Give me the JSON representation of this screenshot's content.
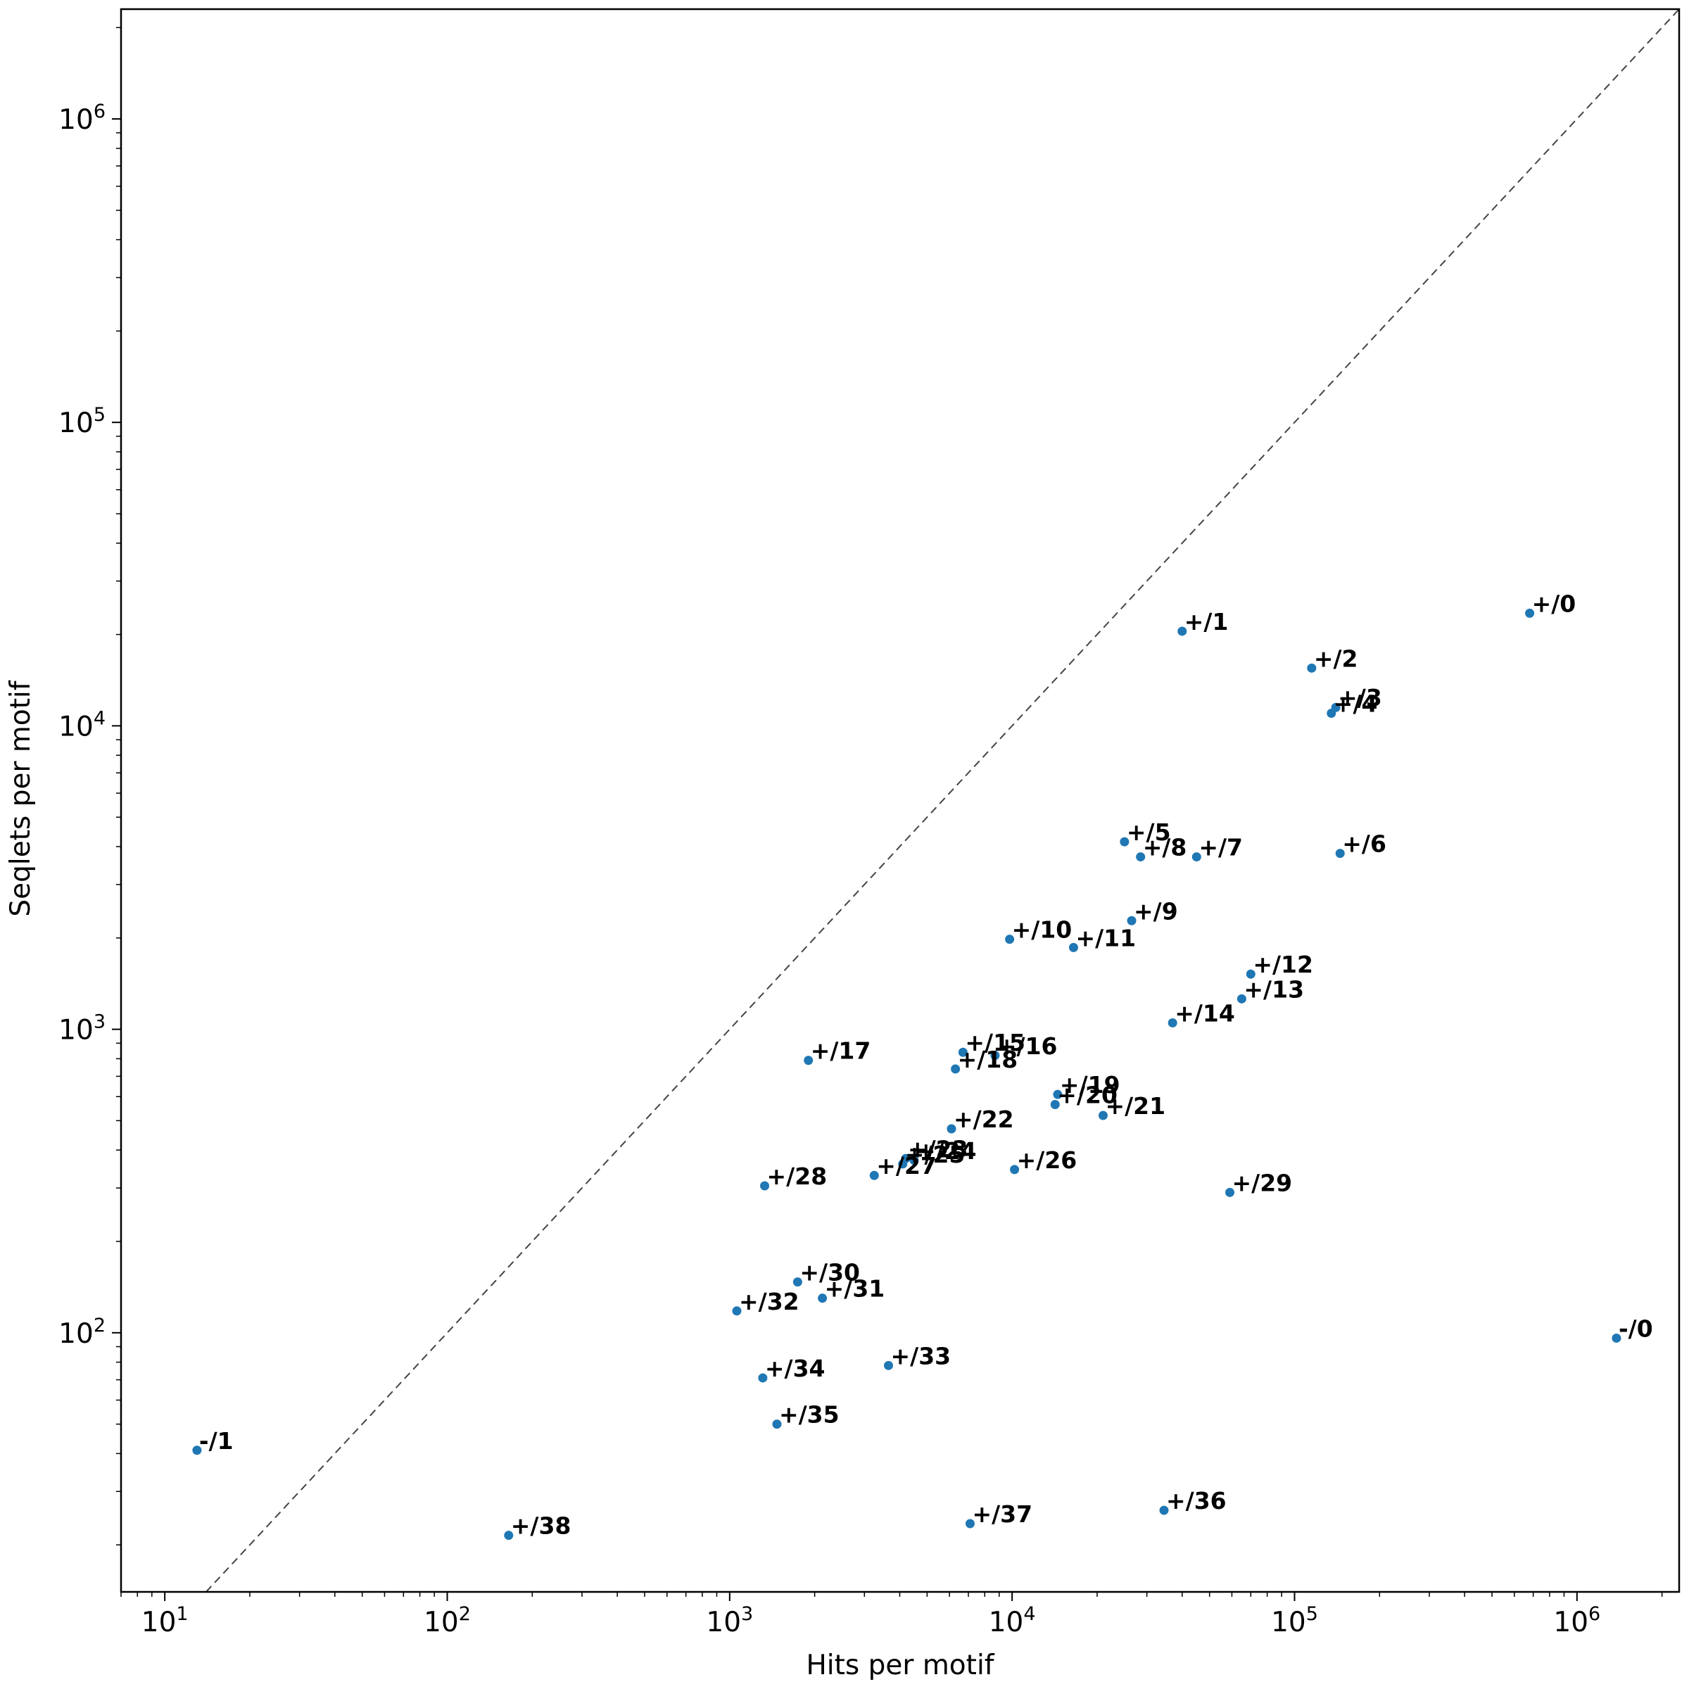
{
  "chart_data": {
    "type": "scatter",
    "xlabel": "Hits per motif",
    "ylabel": "Seqlets per motif",
    "xscale": "log",
    "yscale": "log",
    "xlim": [
      7,
      2300000
    ],
    "ylim": [
      14,
      2300000
    ],
    "xticks": [
      {
        "base": "10",
        "exp": "1",
        "value": 10
      },
      {
        "base": "10",
        "exp": "2",
        "value": 100
      },
      {
        "base": "10",
        "exp": "3",
        "value": 1000
      },
      {
        "base": "10",
        "exp": "4",
        "value": 10000
      },
      {
        "base": "10",
        "exp": "5",
        "value": 100000
      },
      {
        "base": "10",
        "exp": "6",
        "value": 1000000
      }
    ],
    "yticks": [
      {
        "base": "10",
        "exp": "2",
        "value": 100
      },
      {
        "base": "10",
        "exp": "3",
        "value": 1000
      },
      {
        "base": "10",
        "exp": "4",
        "value": 10000
      },
      {
        "base": "10",
        "exp": "5",
        "value": 100000
      },
      {
        "base": "10",
        "exp": "6",
        "value": 1000000
      }
    ],
    "reference_line": "y = x (dashed)",
    "grid": false,
    "color": "#1f77b4",
    "points": [
      {
        "label": "+/0",
        "x": 680000,
        "y": 23500
      },
      {
        "label": "+/1",
        "x": 40000,
        "y": 20500
      },
      {
        "label": "+/2",
        "x": 115000,
        "y": 15500
      },
      {
        "label": "+/3",
        "x": 140000,
        "y": 11500
      },
      {
        "label": "+/4",
        "x": 135000,
        "y": 11000
      },
      {
        "label": "+/5",
        "x": 25000,
        "y": 4150
      },
      {
        "label": "+/6",
        "x": 145000,
        "y": 3800
      },
      {
        "label": "+/7",
        "x": 45000,
        "y": 3700
      },
      {
        "label": "+/8",
        "x": 28500,
        "y": 3700
      },
      {
        "label": "+/9",
        "x": 26500,
        "y": 2280
      },
      {
        "label": "+/10",
        "x": 9800,
        "y": 1980
      },
      {
        "label": "+/11",
        "x": 16500,
        "y": 1860
      },
      {
        "label": "+/12",
        "x": 70000,
        "y": 1520
      },
      {
        "label": "+/13",
        "x": 65000,
        "y": 1260
      },
      {
        "label": "+/14",
        "x": 37000,
        "y": 1050
      },
      {
        "label": "+/15",
        "x": 6700,
        "y": 840
      },
      {
        "label": "+/16",
        "x": 8700,
        "y": 820
      },
      {
        "label": "+/17",
        "x": 1900,
        "y": 790
      },
      {
        "label": "+/18",
        "x": 6300,
        "y": 740
      },
      {
        "label": "+/19",
        "x": 14500,
        "y": 610
      },
      {
        "label": "+/20",
        "x": 14200,
        "y": 565
      },
      {
        "label": "+/21",
        "x": 21000,
        "y": 520
      },
      {
        "label": "+/22",
        "x": 6100,
        "y": 470
      },
      {
        "label": "+/23",
        "x": 4200,
        "y": 375
      },
      {
        "label": "+/24",
        "x": 4500,
        "y": 370
      },
      {
        "label": "+/25",
        "x": 4100,
        "y": 360
      },
      {
        "label": "+/26",
        "x": 10200,
        "y": 345
      },
      {
        "label": "+/27",
        "x": 3250,
        "y": 330
      },
      {
        "label": "+/28",
        "x": 1330,
        "y": 305
      },
      {
        "label": "+/29",
        "x": 59000,
        "y": 290
      },
      {
        "label": "+/30",
        "x": 1740,
        "y": 147
      },
      {
        "label": "+/31",
        "x": 2130,
        "y": 130
      },
      {
        "label": "+/32",
        "x": 1060,
        "y": 118
      },
      {
        "label": "+/33",
        "x": 3650,
        "y": 78
      },
      {
        "label": "+/34",
        "x": 1310,
        "y": 71
      },
      {
        "label": "+/35",
        "x": 1470,
        "y": 50
      },
      {
        "label": "+/36",
        "x": 34500,
        "y": 26
      },
      {
        "label": "+/37",
        "x": 7100,
        "y": 23.5
      },
      {
        "label": "+/38",
        "x": 165,
        "y": 21.5
      },
      {
        "label": "-/0",
        "x": 1380000,
        "y": 96
      },
      {
        "label": "-/1",
        "x": 13,
        "y": 41
      }
    ]
  }
}
